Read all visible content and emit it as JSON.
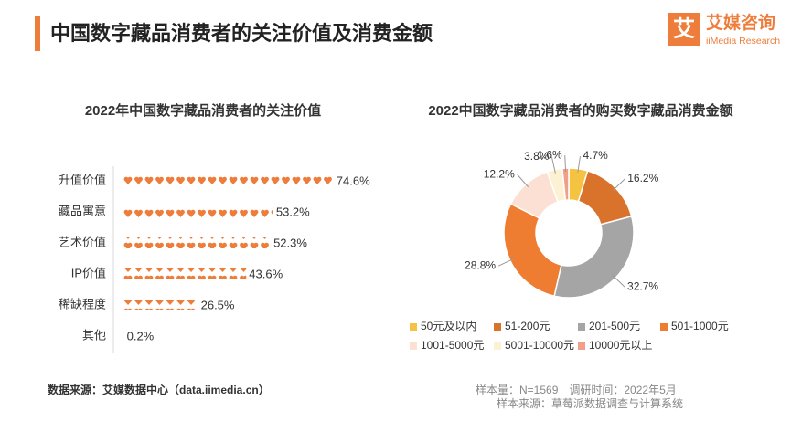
{
  "header": {
    "title": "中国数字藏品消费者的关注价值及消费金额",
    "logo_mark": "艾",
    "logo_cn": "艾媒咨询",
    "logo_en": "iiMedia Research"
  },
  "chart_data": [
    {
      "type": "bar",
      "orientation": "horizontal",
      "title": "2022年中国数字藏品消费者的关注价值",
      "categories": [
        "升值价值",
        "藏品寓意",
        "艺术价值",
        "IP价值",
        "稀缺程度",
        "其他"
      ],
      "values": [
        74.6,
        53.2,
        52.3,
        43.6,
        26.5,
        0.2
      ],
      "value_labels": [
        "74.6%",
        "53.2%",
        "52.3%",
        "43.6%",
        "26.5%",
        "0.2%"
      ],
      "color": "#ee7d3b",
      "marker": "heart"
    },
    {
      "type": "pie",
      "donut": true,
      "title": "2022中国数字藏品消费者的购买数字藏品消费金额",
      "categories": [
        "50元及以内",
        "51-200元",
        "201-500元",
        "501-1000元",
        "1001-5000元",
        "5001-10000元",
        "10000元以上"
      ],
      "values": [
        4.7,
        16.2,
        32.7,
        28.8,
        12.2,
        3.8,
        1.6
      ],
      "value_labels": [
        "4.7%",
        "16.2%",
        "32.7%",
        "28.8%",
        "12.2%",
        "3.8%",
        "1.6%"
      ],
      "colors": [
        "#f5c342",
        "#d9732b",
        "#a5a5a5",
        "#ef7d31",
        "#fbe0d3",
        "#fdf1d4",
        "#f0a08a"
      ]
    }
  ],
  "footer": {
    "source": "数据来源：艾媒数据中心（data.iimedia.cn）",
    "sample": "样本量：N=1569　调研时间：2022年5月",
    "sample_source": "样本来源：草莓派数据调查与计算系统"
  }
}
